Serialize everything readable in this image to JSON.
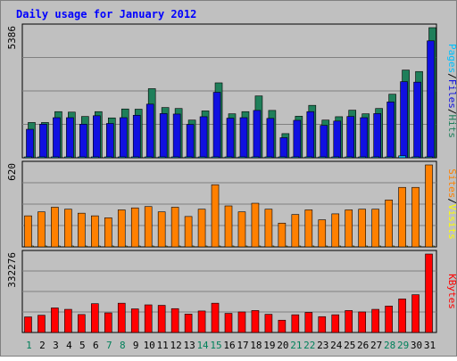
{
  "chart_data": {
    "type": "bar",
    "title": "Daily usage for January 2012",
    "categories": [
      "1",
      "2",
      "3",
      "4",
      "5",
      "6",
      "7",
      "8",
      "9",
      "10",
      "11",
      "12",
      "13",
      "14",
      "15",
      "16",
      "17",
      "18",
      "19",
      "20",
      "21",
      "22",
      "23",
      "24",
      "25",
      "26",
      "27",
      "28",
      "29",
      "30",
      "31"
    ],
    "weekend_days": [
      "1",
      "7",
      "8",
      "14",
      "15",
      "21",
      "22",
      "28",
      "29"
    ],
    "panels": [
      {
        "id": "hits-files-pages",
        "ymax_label": "5386",
        "ymax": 5386,
        "right_label_parts": [
          "Pages",
          "Files",
          "Hits"
        ],
        "series": [
          {
            "name": "Hits",
            "color": "#1f7f5a",
            "values": [
              1460,
              1460,
              1910,
              1890,
              1710,
              1910,
              1650,
              2020,
              2010,
              2860,
              2080,
              2040,
              1560,
              1940,
              3100,
              1820,
              1910,
              2560,
              1960,
              1000,
              1720,
              2170,
              1560,
              1700,
              1970,
              1820,
              2040,
              2630,
              3630,
              3570,
              5386
            ]
          },
          {
            "name": "Files",
            "color": "#1010e0",
            "values": [
              1180,
              1390,
              1660,
              1660,
              1390,
              1740,
              1420,
              1660,
              1760,
              2220,
              1830,
              1810,
              1380,
              1700,
              2710,
              1640,
              1660,
              1960,
              1630,
              830,
              1550,
              1910,
              1340,
              1520,
              1710,
              1660,
              1830,
              2310,
              3150,
              3130,
              4840
            ]
          },
          {
            "name": "Pages",
            "color": "#00c0ff",
            "values": [
              30,
              30,
              30,
              30,
              30,
              30,
              30,
              30,
              30,
              30,
              30,
              30,
              30,
              30,
              30,
              30,
              30,
              30,
              30,
              30,
              30,
              30,
              30,
              30,
              30,
              30,
              30,
              30,
              80,
              30,
              30
            ]
          }
        ]
      },
      {
        "id": "visits-sites",
        "ymax_label": "620",
        "ymax": 620,
        "right_label_parts": [
          "Sites",
          "Visits"
        ],
        "series": [
          {
            "name": "Visits",
            "color": "#ffff00",
            "values": [
              5,
              5,
              5,
              5,
              5,
              5,
              5,
              5,
              5,
              5,
              5,
              5,
              5,
              5,
              5,
              5,
              5,
              5,
              5,
              5,
              5,
              5,
              5,
              5,
              5,
              5,
              5,
              5,
              5,
              5,
              5
            ]
          },
          {
            "name": "Sites",
            "color": "#ff8000",
            "values": [
              235,
              265,
              300,
              285,
              255,
              235,
              220,
              280,
              295,
              305,
              265,
              300,
              230,
              285,
              470,
              310,
              265,
              330,
              285,
              180,
              245,
              280,
              205,
              250,
              280,
              285,
              285,
              355,
              450,
              450,
              620
            ]
          }
        ]
      },
      {
        "id": "kbytes",
        "ymax_label": "332276",
        "ymax": 332276,
        "right_label_parts": [
          "KBytes"
        ],
        "series": [
          {
            "name": "KBytes",
            "color": "#ff0000",
            "values": [
              66000,
              73000,
              104000,
              98000,
              76000,
              122000,
              83000,
              124000,
              100000,
              117000,
              115000,
              101000,
              78000,
              91000,
              124000,
              81000,
              87000,
              93000,
              77000,
              52000,
              75000,
              85000,
              67000,
              75000,
              93000,
              87000,
              98000,
              112000,
              142000,
              160000,
              332276
            ]
          }
        ]
      }
    ]
  }
}
